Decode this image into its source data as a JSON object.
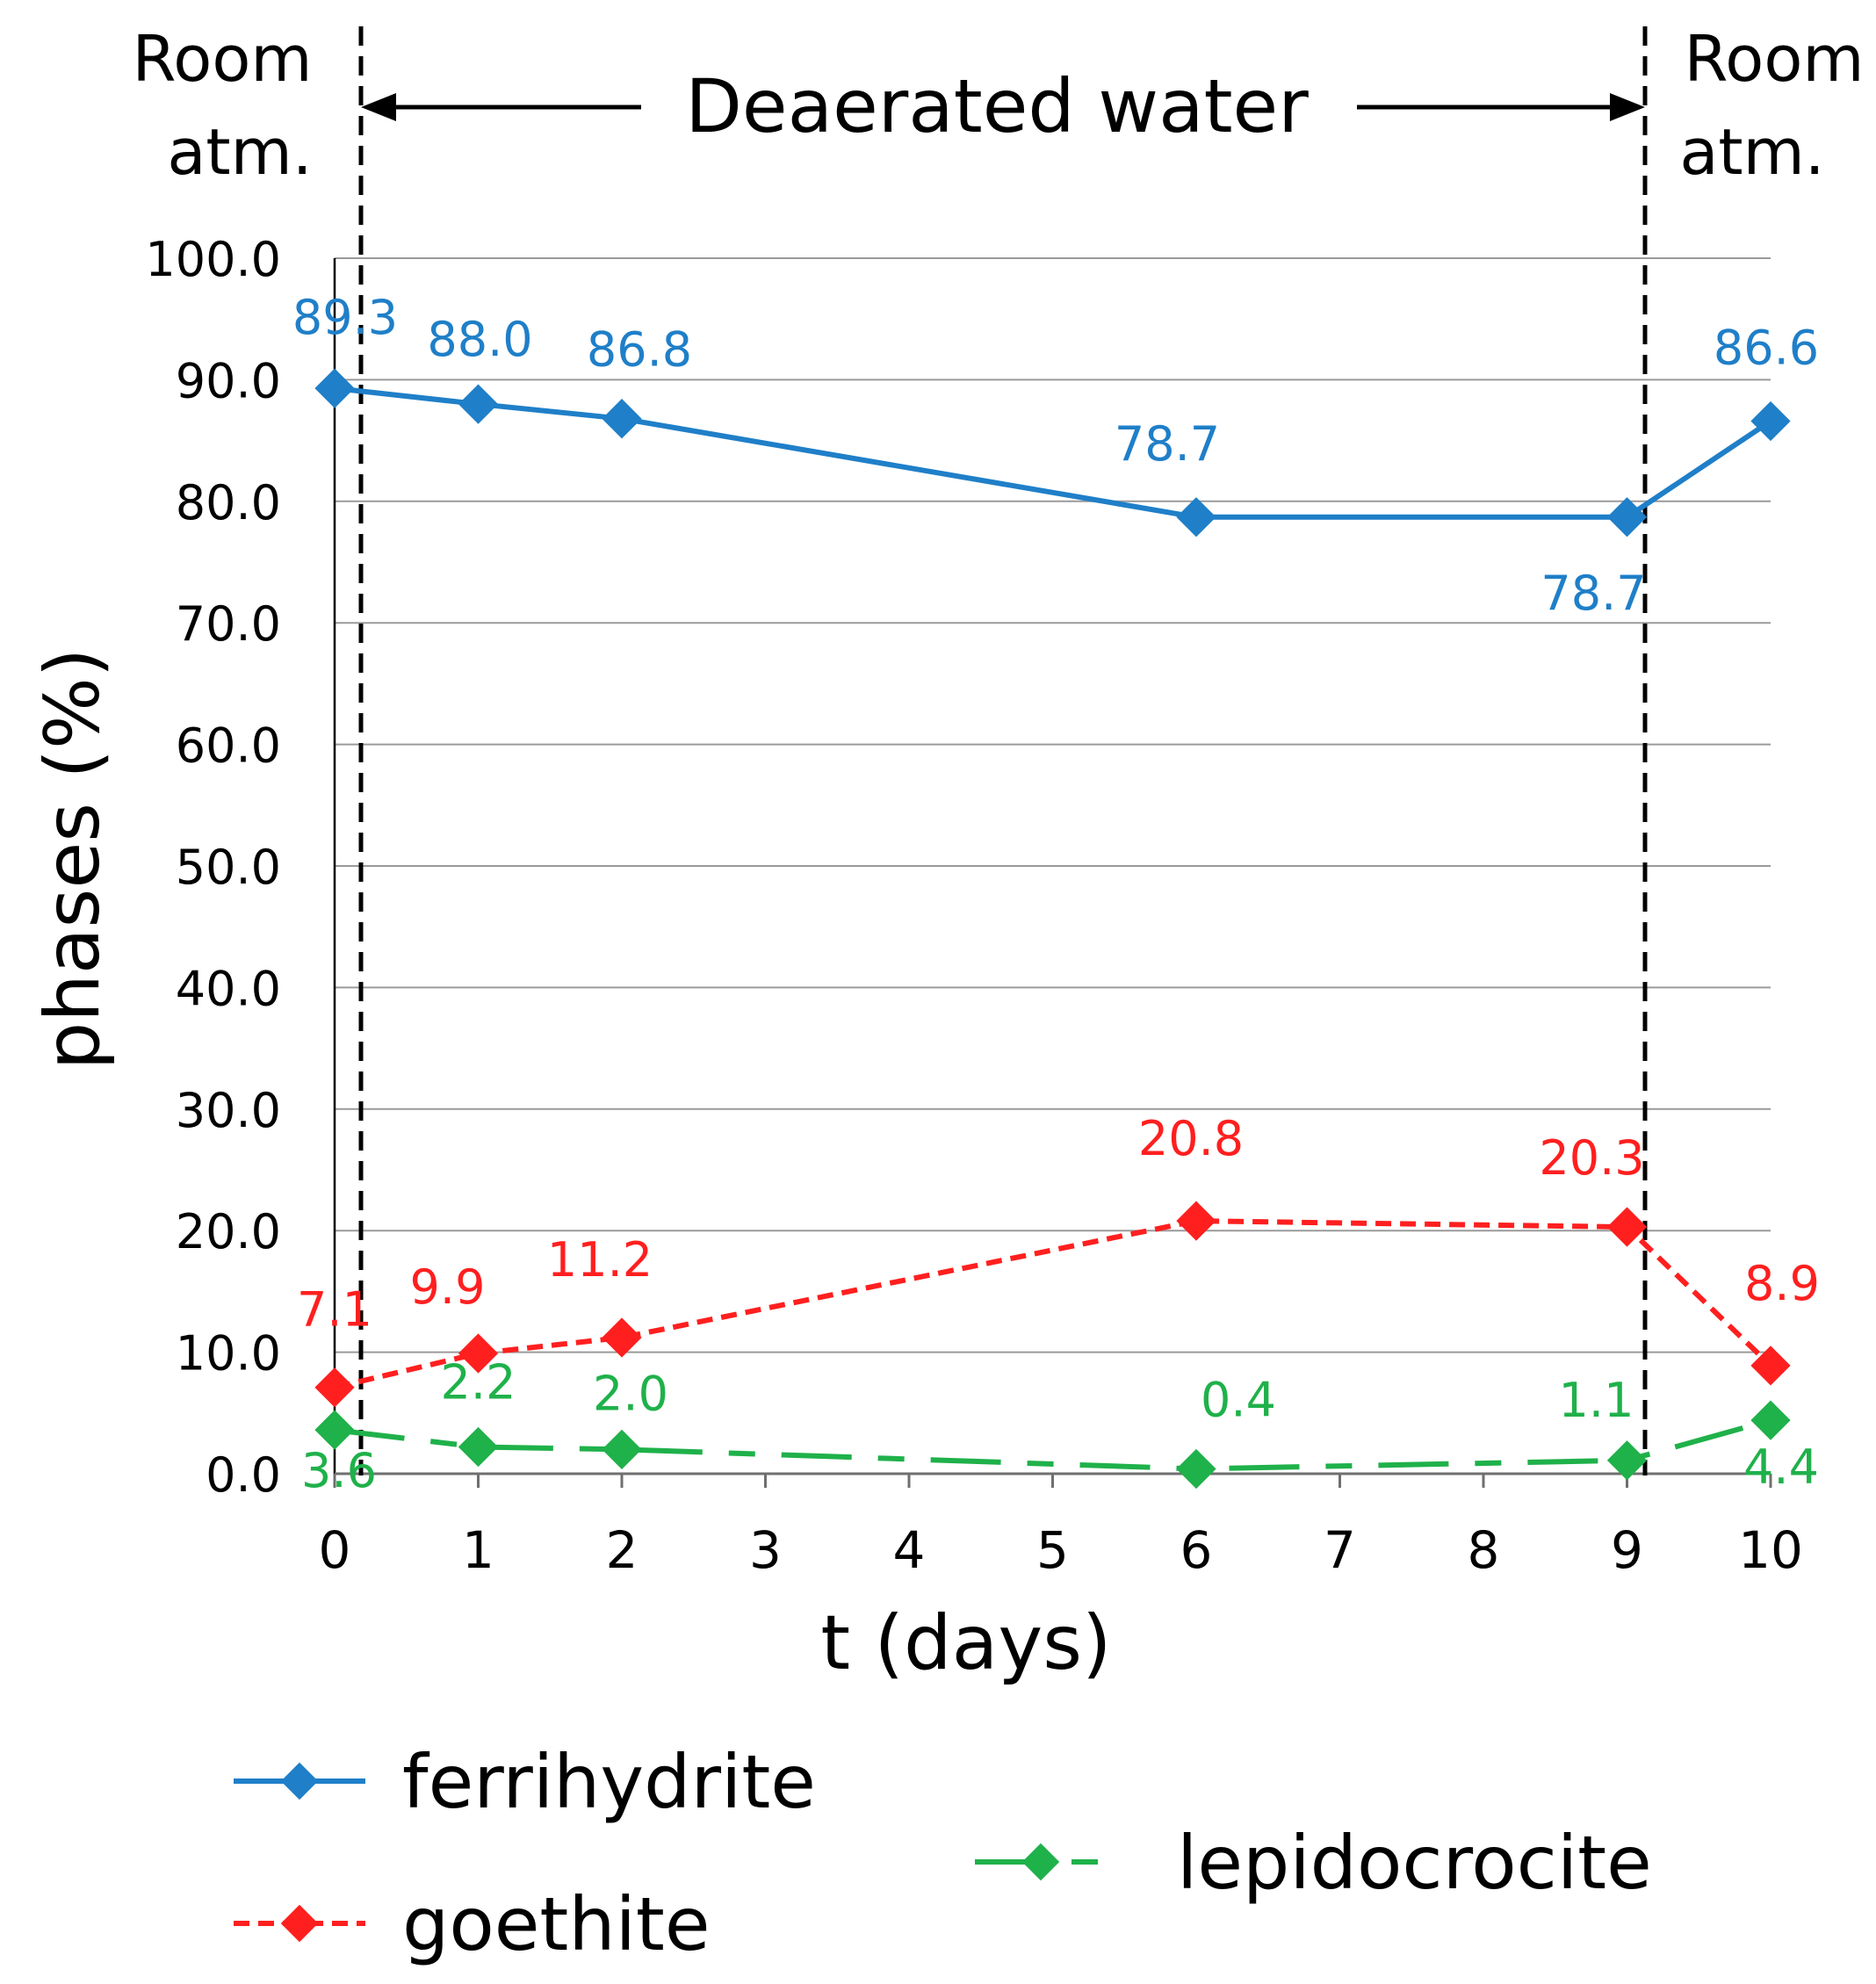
{
  "chart_data": {
    "type": "line",
    "title": "",
    "xlabel": "t (days)",
    "ylabel": "phases (%)",
    "x": [
      0,
      1,
      2,
      6,
      9,
      10
    ],
    "x_ticks": [
      "0",
      "1",
      "2",
      "3",
      "4",
      "5",
      "6",
      "7",
      "8",
      "9",
      "10"
    ],
    "xlim": [
      0,
      10
    ],
    "ylim": [
      0,
      100
    ],
    "y_ticks": [
      "0.0",
      "10.0",
      "20.0",
      "30.0",
      "40.0",
      "50.0",
      "60.0",
      "70.0",
      "80.0",
      "90.0",
      "100.0"
    ],
    "grid": true,
    "series": [
      {
        "name": "ferrihydrite",
        "color": "#1f7fc8",
        "line_style": "solid",
        "values": [
          89.3,
          88.0,
          86.8,
          78.7,
          78.7,
          86.6
        ],
        "labels": [
          "89.3",
          "88.0",
          "86.8",
          "78.7",
          "78.7",
          "86.6"
        ]
      },
      {
        "name": "goethite",
        "color": "#ff1f1f",
        "line_style": "dashed",
        "values": [
          7.1,
          9.9,
          11.2,
          20.8,
          20.3,
          8.9
        ],
        "labels": [
          "7.1",
          "9.9",
          "11.2",
          "20.8",
          "20.3",
          "8.9"
        ]
      },
      {
        "name": "lepidocrocite",
        "color": "#1fb14a",
        "line_style": "dashdot",
        "values": [
          3.6,
          2.2,
          2.0,
          0.4,
          1.1,
          4.4
        ],
        "labels": [
          "3.6",
          "2.2",
          "2.0",
          "0.4",
          "1.1",
          "4.4"
        ]
      }
    ],
    "annotations": {
      "left_region_line1": "Room",
      "left_region_line2": "atm.",
      "middle_region": "Deaerated water",
      "right_region_line1": "Room",
      "right_region_line2": "atm."
    },
    "legend_position": "bottom"
  }
}
